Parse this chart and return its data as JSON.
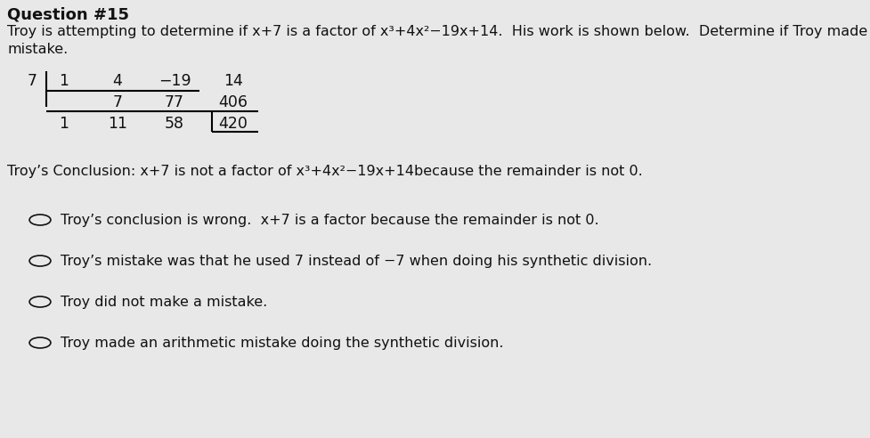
{
  "title": "Question #15",
  "intro_line1": "Troy is attempting to determine if x+7 is a factor of x³+4x²−19x+14.  His work is shown below.  Determine if Troy made a",
  "intro_line2": "mistake.",
  "synthetic_div": {
    "divisor": "7",
    "row1": [
      "1",
      "4",
      "−19",
      "14"
    ],
    "row2": [
      "",
      "7",
      "77",
      "406"
    ],
    "row3": [
      "1",
      "11",
      "58",
      "420"
    ]
  },
  "conclusion_text": "Troy’s Conclusion: x+7 is not a factor of x³+4x²−19x+14because the remainder is not 0.",
  "options": [
    "Troy’s conclusion is wrong.  x+7 is a factor because the remainder is not 0.",
    "Troy’s mistake was that he used 7 instead of −7 when doing his synthetic division.",
    "Troy did not make a mistake.",
    "Troy made an arithmetic mistake doing the synthetic division."
  ],
  "bg_color": "#e8e8e8",
  "text_color": "#111111",
  "font_size_title": 13,
  "font_size_body": 11.5,
  "font_size_table": 12.5
}
